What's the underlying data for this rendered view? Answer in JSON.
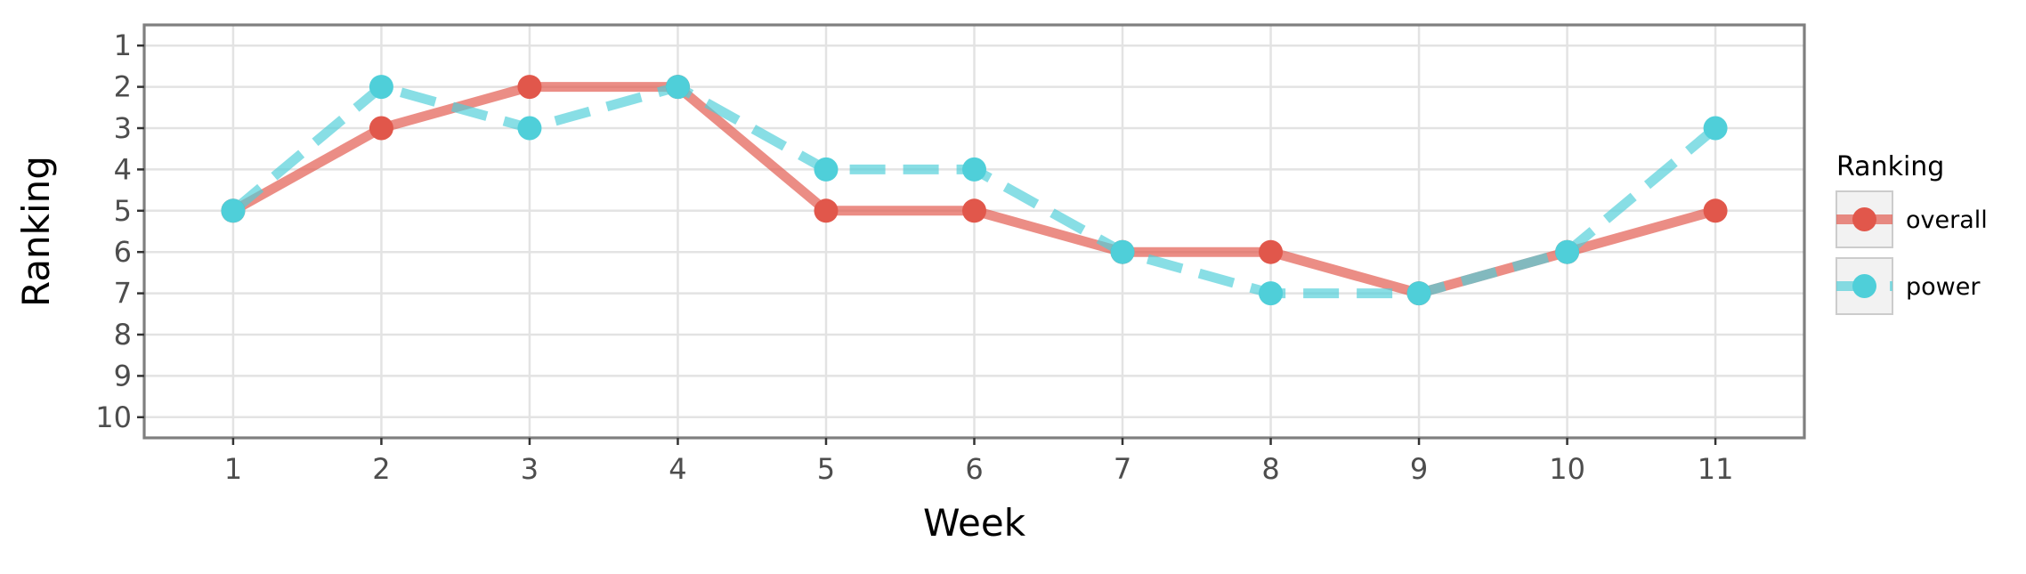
{
  "chart_data": {
    "type": "line",
    "title": "",
    "xlabel": "Week",
    "ylabel": "Ranking",
    "x": [
      1,
      2,
      3,
      4,
      5,
      6,
      7,
      8,
      9,
      10,
      11
    ],
    "x_ticks": [
      "1",
      "2",
      "3",
      "4",
      "5",
      "6",
      "7",
      "8",
      "9",
      "10",
      "11"
    ],
    "xlim": [
      0.4,
      11.6
    ],
    "y_ticks": [
      "1",
      "2",
      "3",
      "4",
      "5",
      "6",
      "7",
      "8",
      "9",
      "10"
    ],
    "ylim": [
      0.5,
      10.5
    ],
    "y_reversed": true,
    "grid": true,
    "legend": {
      "title": "Ranking",
      "placement": "right"
    },
    "series": [
      {
        "name": "overall",
        "values": [
          5,
          3,
          2,
          2,
          5,
          5,
          6,
          6,
          7,
          6,
          5
        ],
        "color": "#e1574b",
        "line_style": "solid"
      },
      {
        "name": "power",
        "values": [
          5,
          2,
          3,
          2,
          4,
          4,
          6,
          7,
          7,
          6,
          3
        ],
        "color": "#4fcfd9",
        "line_style": "dashed"
      }
    ]
  }
}
